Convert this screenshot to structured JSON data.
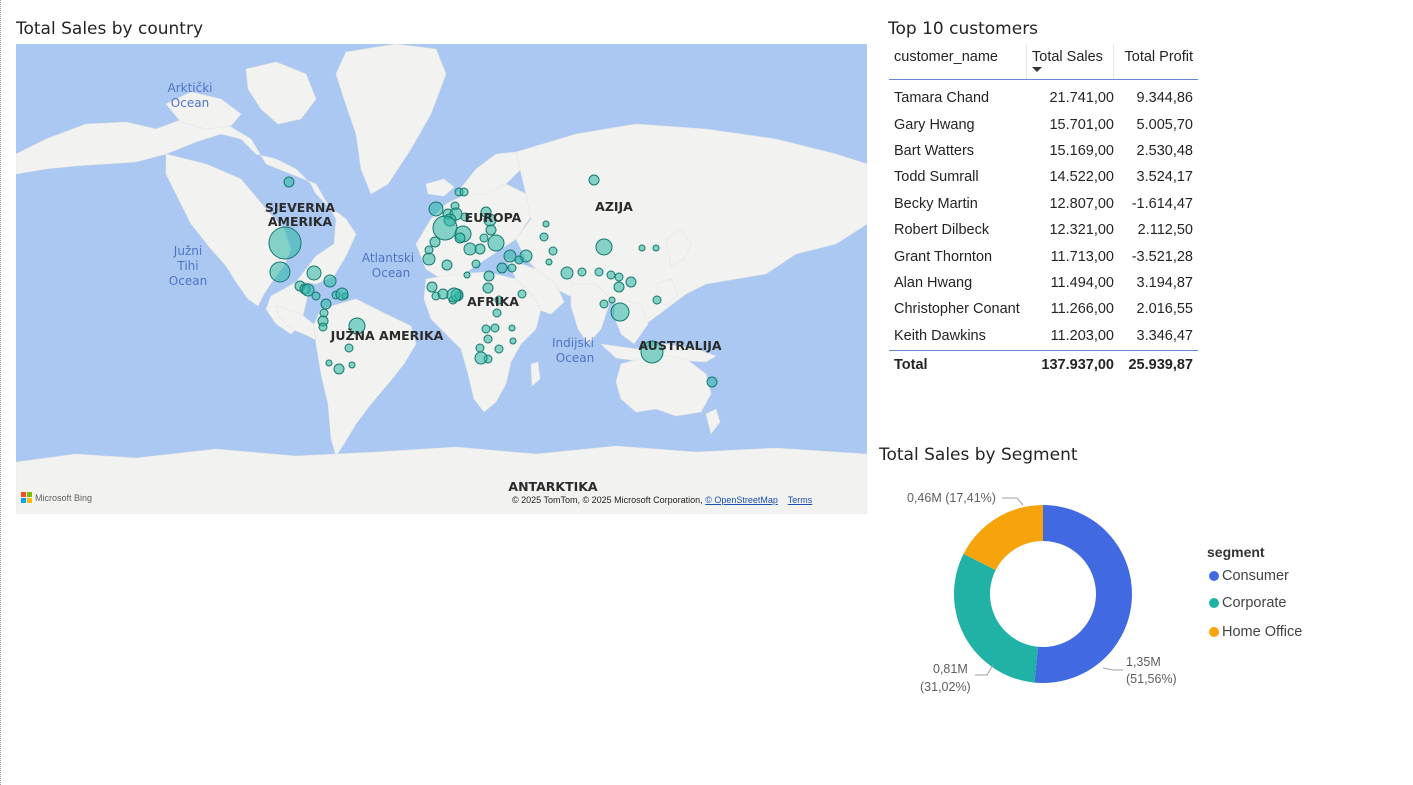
{
  "map": {
    "title": "Total Sales by country",
    "continents": [
      "SJEVERNA AMERIKA",
      "EUROPA",
      "AZIJA",
      "AFRIKA",
      "JUŽNA AMERIKA",
      "AUSTRALIJA",
      "ANTARKTIKA"
    ],
    "oceans": [
      "Arktički Ocean",
      "Južni Tihi Ocean",
      "Atlantski Ocean",
      "Indijski Ocean"
    ],
    "credit_text": "© 2025 TomTom, © 2025 Microsoft Corporation,",
    "credit_link": "© OpenStreetMap",
    "terms": "Terms",
    "bing": "Microsoft Bing",
    "colors": {
      "water": "#aac8f1",
      "land": "#f2f2f0",
      "bubble": "#2ab7a6"
    }
  },
  "table": {
    "title": "Top 10 customers",
    "columns": [
      "customer_name",
      "Total Sales",
      "Total Profit"
    ],
    "rows": [
      [
        "Tamara Chand",
        "21.741,00",
        "9.344,86"
      ],
      [
        "Gary Hwang",
        "15.701,00",
        "5.005,70"
      ],
      [
        "Bart Watters",
        "15.169,00",
        "2.530,48"
      ],
      [
        "Todd Sumrall",
        "14.522,00",
        "3.524,17"
      ],
      [
        "Becky Martin",
        "12.807,00",
        "-1.614,47"
      ],
      [
        "Robert Dilbeck",
        "12.321,00",
        "2.112,50"
      ],
      [
        "Grant Thornton",
        "11.713,00",
        "-3.521,28"
      ],
      [
        "Alan Hwang",
        "11.494,00",
        "3.194,87"
      ],
      [
        "Christopher Conant",
        "11.266,00",
        "2.016,55"
      ],
      [
        "Keith Dawkins",
        "11.203,00",
        "3.346,47"
      ]
    ],
    "total": [
      "Total",
      "137.937,00",
      "25.939,87"
    ]
  },
  "donut": {
    "title": "Total Sales by Segment",
    "legend_title": "segment",
    "labels": {
      "home_office": "0,46M (17,41%)",
      "corporate_value": "0,81M",
      "corporate_pct": "(31,02%)",
      "consumer_value": "1,35M",
      "consumer_pct": "(51,56%)"
    }
  },
  "chart_data": {
    "type": "pie",
    "title": "Total Sales by Segment",
    "categories": [
      "Consumer",
      "Corporate",
      "Home Office"
    ],
    "values": [
      1.35,
      0.81,
      0.46
    ],
    "percentages": [
      51.56,
      31.02,
      17.41
    ],
    "unit": "M",
    "colors": [
      "#4169e1",
      "#20b2a5",
      "#f7a30c"
    ],
    "legend": "right"
  }
}
